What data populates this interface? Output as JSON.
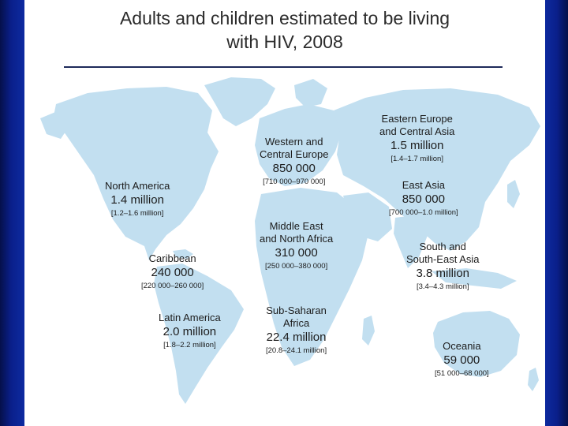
{
  "title": {
    "line1": "Adults and children estimated to be living",
    "line2": "with HIV, 2008"
  },
  "colors": {
    "land": "#c2dff0",
    "rule": "#1e2a5a",
    "background_frame": "#0d2aa0"
  },
  "regions": [
    {
      "id": "north-america",
      "name_lines": [
        "North America"
      ],
      "value": "1.4 million",
      "range": "[1.2–1.6 million]"
    },
    {
      "id": "caribbean",
      "name_lines": [
        "Caribbean"
      ],
      "value": "240 000",
      "range": "[220 000–260 000]"
    },
    {
      "id": "latin-america",
      "name_lines": [
        "Latin America"
      ],
      "value": "2.0 million",
      "range": "[1.8–2.2 million]"
    },
    {
      "id": "western-central-europe",
      "name_lines": [
        "Western and",
        "Central Europe"
      ],
      "value": "850 000",
      "range": "[710 000–970 000]"
    },
    {
      "id": "middle-east-north-africa",
      "name_lines": [
        "Middle East",
        "and North Africa"
      ],
      "value": "310 000",
      "range": "[250 000–380 000]"
    },
    {
      "id": "sub-saharan-africa",
      "name_lines": [
        "Sub-Saharan",
        "Africa"
      ],
      "value": "22.4 million",
      "range": "[20.8–24.1 million]"
    },
    {
      "id": "eastern-europe-central-asia",
      "name_lines": [
        "Eastern Europe",
        "and Central Asia"
      ],
      "value": "1.5 million",
      "range": "[1.4–1.7 million]"
    },
    {
      "id": "east-asia",
      "name_lines": [
        "East Asia"
      ],
      "value": "850 000",
      "range": "[700 000–1.0 million]"
    },
    {
      "id": "south-southeast-asia",
      "name_lines": [
        "South and",
        "South-East Asia"
      ],
      "value": "3.8 million",
      "range": "[3.4–4.3 million]"
    },
    {
      "id": "oceania",
      "name_lines": [
        "Oceania"
      ],
      "value": "59 000",
      "range": "[51 000–68 000]"
    }
  ]
}
